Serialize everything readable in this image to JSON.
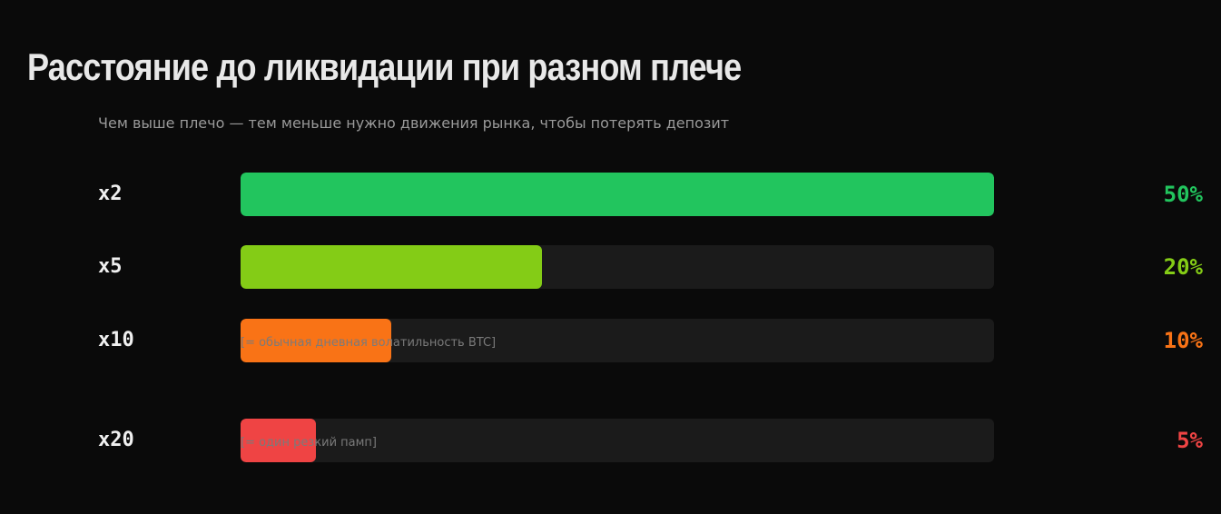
{
  "title": "Расстояние до ликвидации при разном плече",
  "subtitle": "Чем выше плечо — тем меньше нужно движения рынка, чтобы потерять депозит",
  "chart_data": {
    "type": "bar",
    "orientation": "horizontal",
    "title": "Расстояние до ликвидации при разном плече",
    "subtitle": "Чем выше плечо — тем меньше нужно движения рынка, чтобы потерять депозит",
    "categories": [
      "x2",
      "x5",
      "x10",
      "x20"
    ],
    "values": [
      50,
      20,
      10,
      5
    ],
    "value_labels": [
      "50%",
      "20%",
      "10%",
      "5%"
    ],
    "colors": [
      "#22c55e",
      "#84cc16",
      "#f97316",
      "#ef4444"
    ],
    "xlim": [
      0,
      50
    ],
    "unit": "%",
    "grid": false,
    "annotations": [
      {
        "category": "x10",
        "text": "[= обычная дневная волатильность BTC]"
      },
      {
        "category": "x20",
        "text": "[= один резкий памп]"
      }
    ]
  }
}
